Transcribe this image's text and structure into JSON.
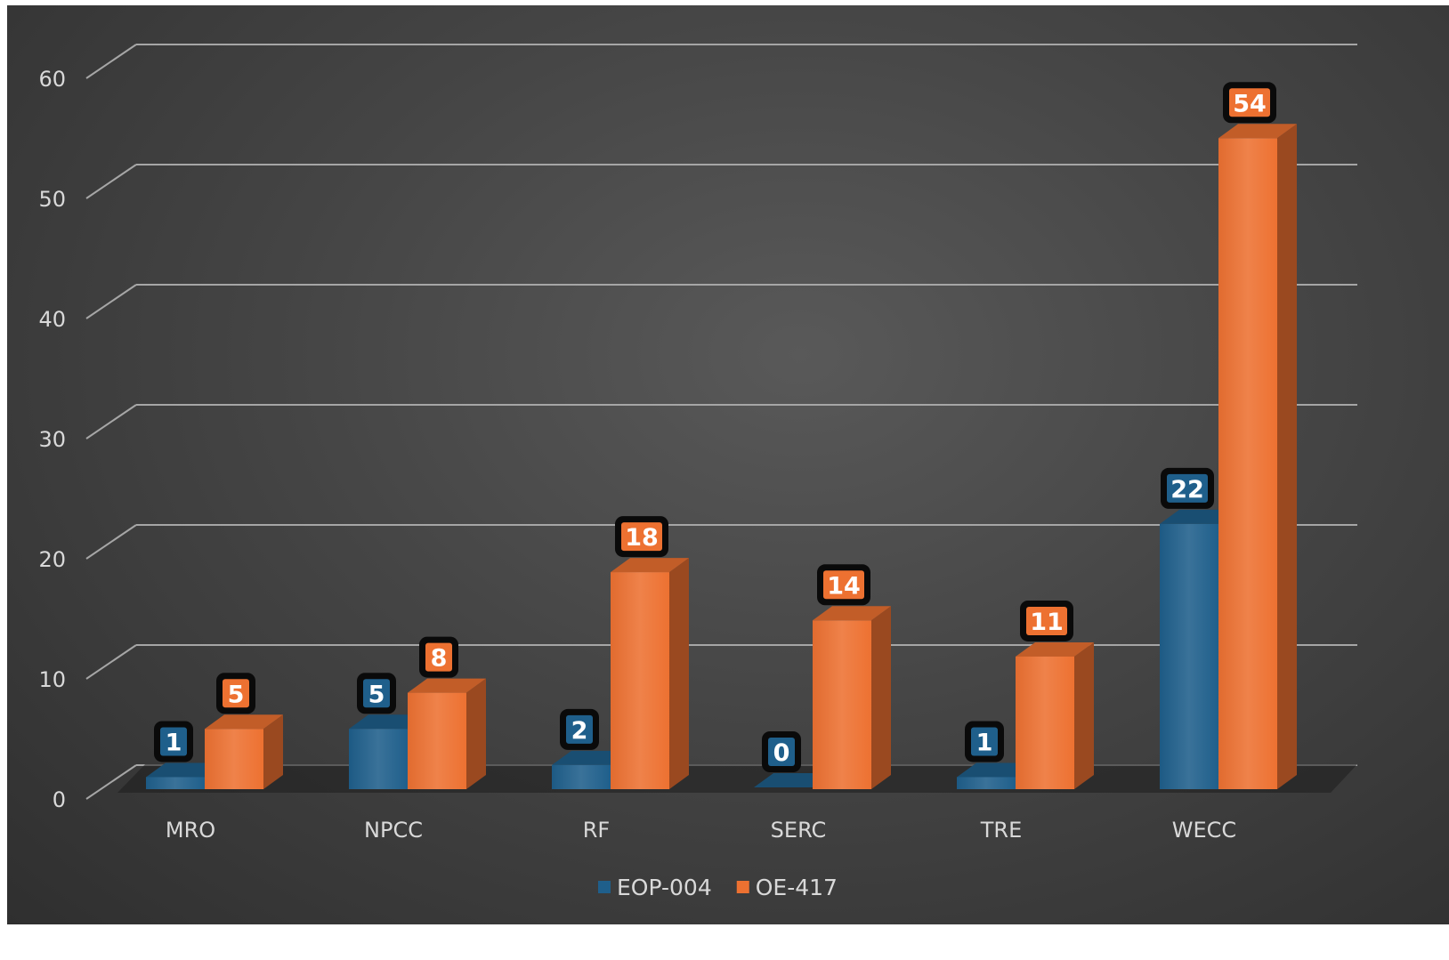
{
  "chart_data": {
    "type": "bar",
    "style": "3d-clustered-column",
    "categories": [
      "MRO",
      "NPCC",
      "RF",
      "SERC",
      "TRE",
      "WECC"
    ],
    "series": [
      {
        "name": "EOP-004",
        "values": [
          1,
          5,
          2,
          0,
          1,
          22
        ],
        "color": "#1f5f8b"
      },
      {
        "name": "OE-417",
        "values": [
          5,
          8,
          18,
          14,
          11,
          54
        ],
        "color": "#ed7131"
      }
    ],
    "ylim": [
      0,
      60
    ],
    "yticks": [
      0,
      10,
      20,
      30,
      40,
      50,
      60
    ],
    "grid": true,
    "legend": "bottom-center",
    "data_labels": true,
    "background": "#404040"
  }
}
